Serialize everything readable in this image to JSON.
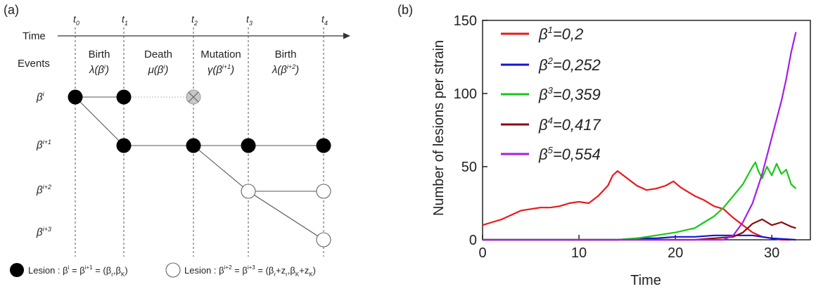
{
  "panel_a": {
    "label": "(a)",
    "time_label": "Time",
    "events_label": "Events",
    "times": [
      "t",
      "t",
      "t",
      "t",
      "t"
    ],
    "time_subs": [
      "0",
      "1",
      "2",
      "3",
      "4"
    ],
    "events": [
      {
        "name": "Birth",
        "rate": "λ(β",
        "sup": "i",
        "tail": ")"
      },
      {
        "name": "Death",
        "rate": "μ(β",
        "sup": "i",
        "tail": ")"
      },
      {
        "name": "Mutation",
        "rate": "γ(β",
        "sup": "i+1",
        "tail": ")"
      },
      {
        "name": "Birth",
        "rate": "λ(β",
        "sup": "i+2",
        "tail": ")"
      }
    ],
    "strains": [
      {
        "base": "β",
        "sup": "i"
      },
      {
        "base": "β",
        "sup": "i+1"
      },
      {
        "base": "β",
        "sup": "i+2"
      },
      {
        "base": "β",
        "sup": "i+3"
      }
    ],
    "legend_filled": {
      "prefix": "Lesion : β",
      "sup1": "i",
      "mid": " = β",
      "sup2": "i+1",
      "rest": " = (β",
      "s1": "r",
      "c": ",β",
      "s2": "K",
      "end": ")"
    },
    "legend_open": {
      "prefix": "Lesion : β",
      "sup1": "i+2",
      "mid": " = β",
      "sup2": "i+3",
      "rest": " = (β",
      "s1": "r",
      "p1": "+z",
      "s2": "r",
      "c": ",β",
      "s3": "K",
      "p2": "+z",
      "s4": "K",
      "end": ")"
    }
  },
  "panel_b": {
    "label": "(b)",
    "legend": [
      {
        "base": "β",
        "sup": "1",
        "value": "=0,2",
        "color": "#e8191c"
      },
      {
        "base": "β",
        "sup": "2",
        "value": "=0,252",
        "color": "#1414d2"
      },
      {
        "base": "β",
        "sup": "3",
        "value": "=0,359",
        "color": "#19c819"
      },
      {
        "base": "β",
        "sup": "4",
        "value": "=0,417",
        "color": "#8b0b0b"
      },
      {
        "base": "β",
        "sup": "5",
        "value": "=0,554",
        "color": "#a51ee6"
      }
    ]
  },
  "chart_data": {
    "type": "line",
    "xlabel": "Time",
    "ylabel": "Number of lesions per strain",
    "xlim": [
      0,
      34
    ],
    "ylim": [
      0,
      150
    ],
    "xticks": [
      0,
      10,
      20,
      30
    ],
    "yticks": [
      0,
      50,
      100,
      150
    ],
    "series": [
      {
        "name": "β1=0,2",
        "color": "#e8191c",
        "x": [
          0,
          1,
          2,
          3,
          4,
          5,
          6,
          7,
          8,
          9,
          10,
          11,
          12,
          13,
          13.5,
          14,
          15,
          16,
          17,
          18,
          19,
          19.8,
          20.5,
          21,
          22,
          23,
          24,
          25,
          26,
          27,
          28,
          29,
          30,
          31,
          32
        ],
        "y": [
          10,
          12,
          14,
          17,
          20,
          21,
          22,
          22,
          23,
          25,
          26,
          25,
          30,
          37,
          44,
          47,
          42,
          37,
          34,
          35,
          37,
          40,
          36,
          34,
          30,
          27,
          23,
          21,
          15,
          10,
          5,
          2,
          1,
          0,
          0
        ]
      },
      {
        "name": "β2=0,252",
        "color": "#1414d2",
        "x": [
          0,
          14,
          16,
          18,
          20,
          22,
          24,
          26,
          28,
          29,
          30,
          32.5
        ],
        "y": [
          0,
          0,
          1,
          1,
          2,
          2,
          3,
          3,
          3,
          2,
          1,
          0
        ]
      },
      {
        "name": "β3=0,359",
        "color": "#19c819",
        "x": [
          0,
          14,
          16,
          18,
          20,
          22,
          23,
          24,
          25,
          26,
          27,
          27.5,
          28,
          28.3,
          28.6,
          29,
          29.5,
          30,
          30.5,
          31,
          31.5,
          32,
          32.5
        ],
        "y": [
          0,
          0,
          1,
          3,
          5,
          8,
          12,
          16,
          22,
          30,
          38,
          44,
          50,
          53,
          47,
          42,
          50,
          44,
          52,
          45,
          48,
          38,
          35
        ]
      },
      {
        "name": "β4=0,417",
        "color": "#8b0b0b",
        "x": [
          0,
          22,
          24,
          26,
          27,
          28,
          29,
          30,
          31,
          32,
          32.5
        ],
        "y": [
          0,
          0,
          1,
          2,
          5,
          11,
          14,
          10,
          12,
          9,
          8
        ]
      },
      {
        "name": "β5=0,554",
        "color": "#a51ee6",
        "x": [
          0,
          25,
          26,
          27,
          28,
          29,
          30,
          31,
          31.5,
          32,
          32.5
        ],
        "y": [
          0,
          0,
          3,
          12,
          25,
          45,
          70,
          95,
          110,
          128,
          142
        ]
      }
    ]
  }
}
